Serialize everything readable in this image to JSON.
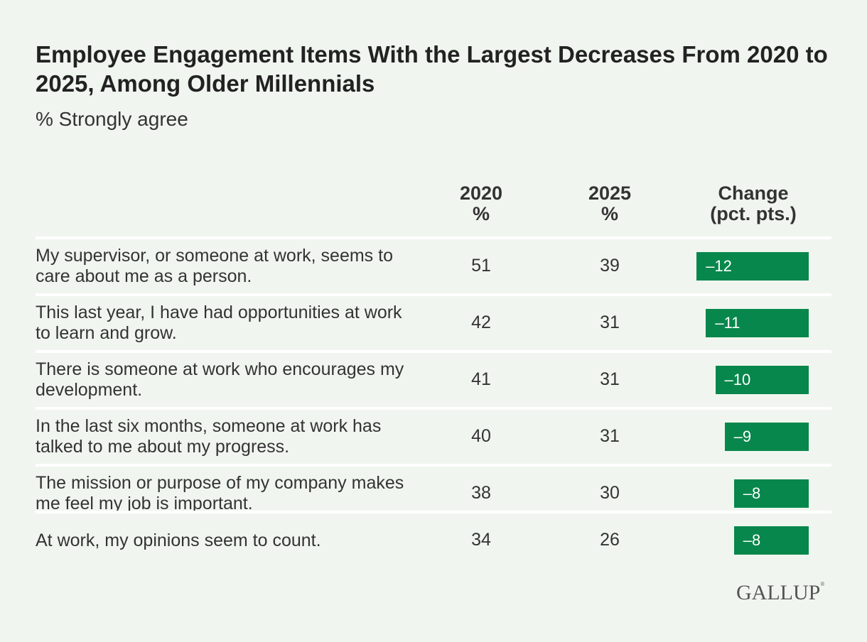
{
  "title": "Employee Engagement Items With the Largest Decreases From 2020 to 2025, Among Older Millennials",
  "subtitle": "% Strongly agree",
  "brand": "GALLUP",
  "colors": {
    "background": "#f0f6ef",
    "bar": "#07874c",
    "divider": "#ffffff"
  },
  "chart_data": {
    "type": "table",
    "columns": [
      {
        "line1": "2020",
        "line2": "%"
      },
      {
        "line1": "2025",
        "line2": "%"
      },
      {
        "line1": "Change",
        "line2": "(pct. pts.)"
      }
    ],
    "rows": [
      {
        "item": "My supervisor, or someone at work, seems to care about me as a person.",
        "y2020": 51,
        "y2025": 39,
        "change": -12,
        "change_label": "–12"
      },
      {
        "item": "This last year, I have had opportunities at work to learn and grow.",
        "y2020": 42,
        "y2025": 31,
        "change": -11,
        "change_label": "–11"
      },
      {
        "item": "There is someone at work who encourages my development.",
        "y2020": 41,
        "y2025": 31,
        "change": -10,
        "change_label": "–10"
      },
      {
        "item": "In the last six months, someone at work has talked to me about my progress.",
        "y2020": 40,
        "y2025": 31,
        "change": -9,
        "change_label": "–9"
      },
      {
        "item": "The mission or purpose of my company makes me feel my job is important.",
        "y2020": 38,
        "y2025": 30,
        "change": -8,
        "change_label": "–8"
      },
      {
        "item": "At work, my opinions seem to count.",
        "y2020": 34,
        "y2025": 26,
        "change": -8,
        "change_label": "–8"
      }
    ]
  }
}
